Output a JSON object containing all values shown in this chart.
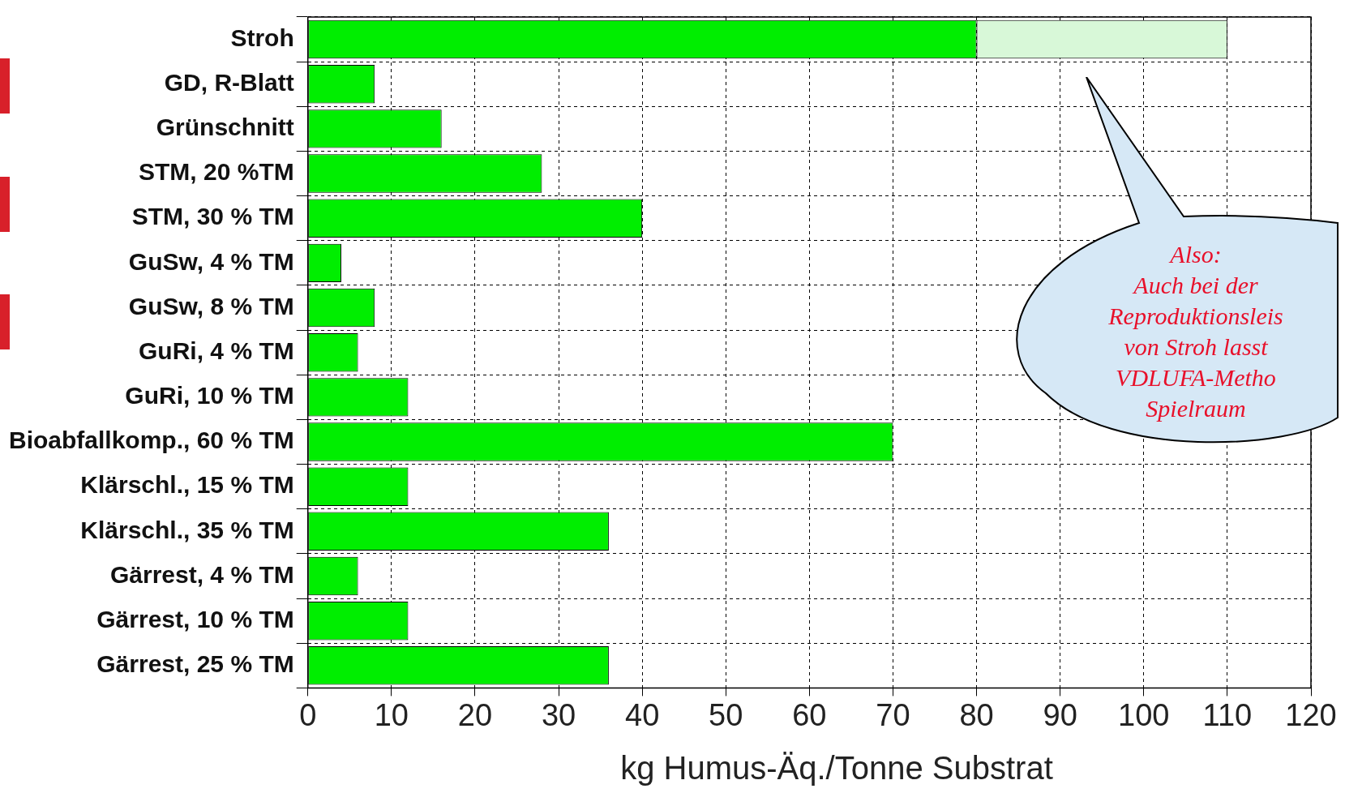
{
  "chart_data": {
    "type": "bar",
    "orientation": "horizontal",
    "stacked": true,
    "xlabel": "kg Humus-Äq./Tonne Substrat",
    "categories": [
      "Stroh",
      "GD, R-Blatt",
      "Grünschnitt",
      "STM, 20 %TM",
      "STM, 30 % TM",
      "GuSw, 4 % TM",
      "GuSw, 8 % TM",
      "GuRi, 4 % TM",
      "GuRi, 10 % TM",
      "Bioabfallkomp., 60 % TM",
      "Klärschl., 15 % TM",
      "Klärschl., 35 % TM",
      "Gärrest, 4 % TM",
      "Gärrest, 10 % TM",
      "Gärrest, 25 % TM"
    ],
    "series": [
      {
        "color": "#00ee00",
        "values": [
          80,
          8,
          16,
          28,
          40,
          4,
          8,
          6,
          12,
          70,
          12,
          36,
          6,
          12,
          36
        ]
      },
      {
        "color": "#d8f8d8",
        "values": [
          30,
          null,
          null,
          null,
          null,
          null,
          null,
          null,
          null,
          null,
          null,
          null,
          null,
          null,
          null
        ]
      }
    ],
    "xlim": [
      0,
      120
    ],
    "xticks": [
      0,
      10,
      20,
      30,
      40,
      50,
      60,
      70,
      80,
      90,
      100,
      110,
      120
    ],
    "grid": true,
    "legend": false,
    "annotations": [
      "Also:\nAuch bei der\nReproduktionsleis\nvon Stroh lasst\nVDLUFA-Metho\nSpielraum"
    ]
  }
}
